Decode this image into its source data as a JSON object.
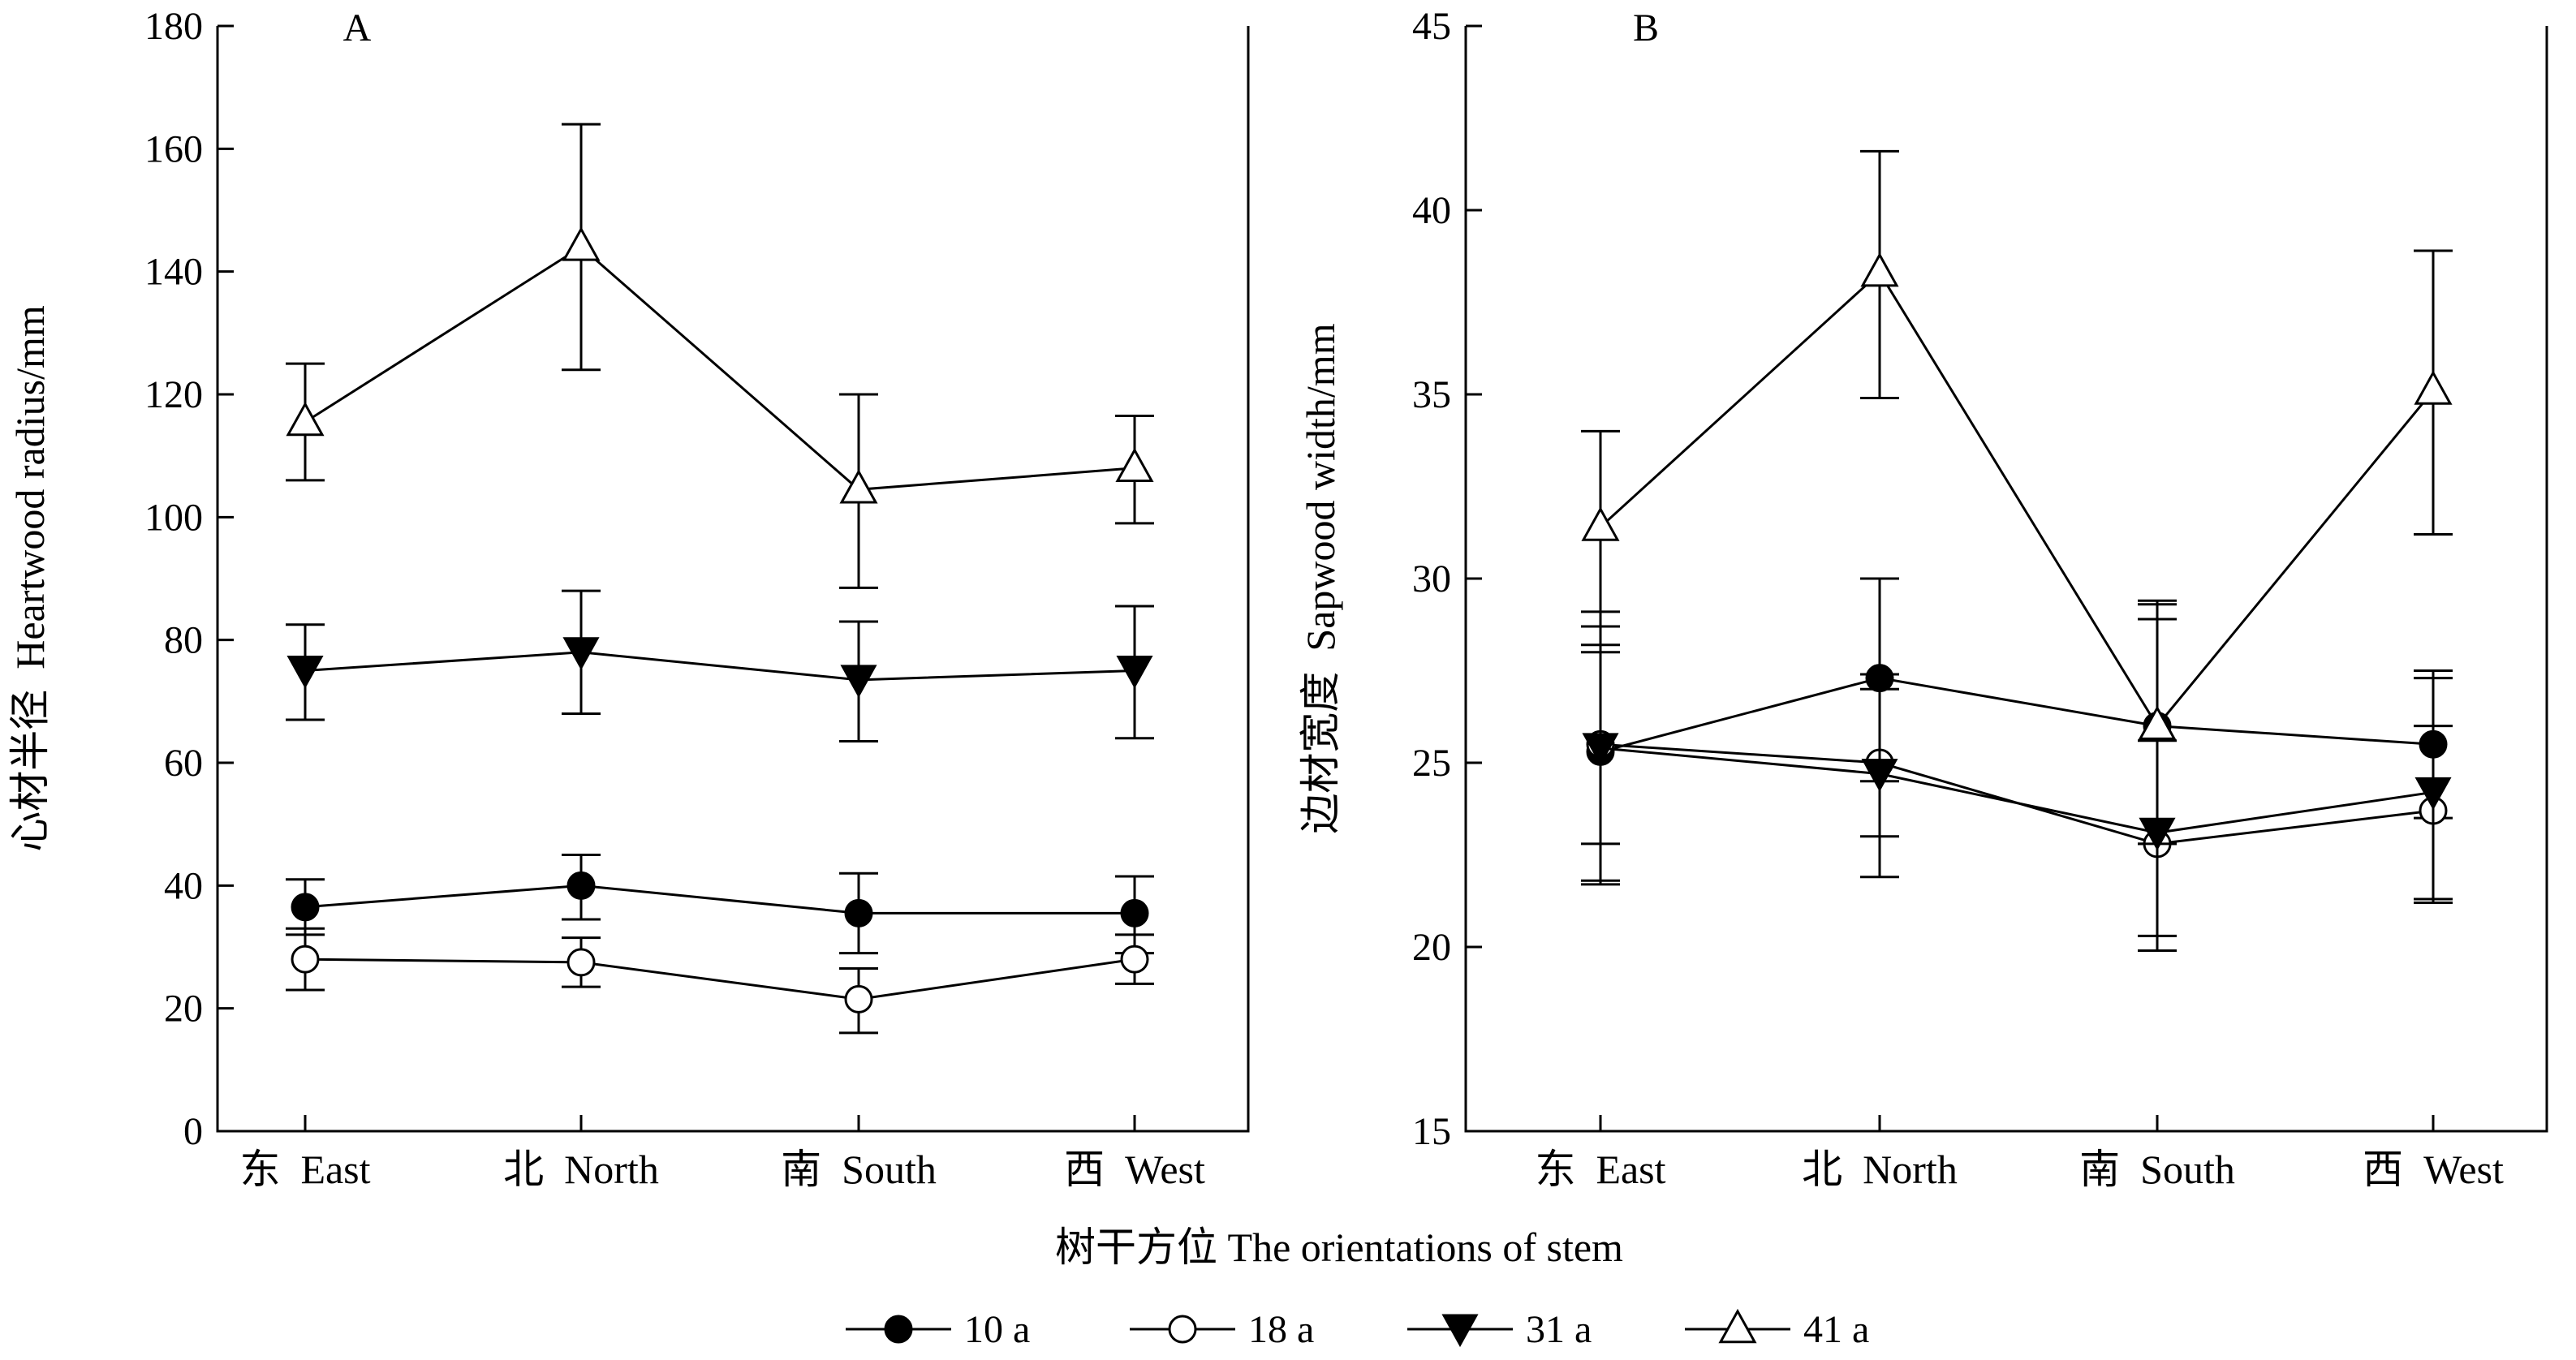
{
  "xlabel": "树干方位  The orientations of stem",
  "legend": [
    {
      "name": "10 a",
      "marker": "filled-circle"
    },
    {
      "name": "18 a",
      "marker": "open-circle"
    },
    {
      "name": "31 a",
      "marker": "filled-triangle-down"
    },
    {
      "name": "41 a",
      "marker": "open-triangle-up"
    }
  ],
  "chart_data": [
    {
      "type": "line",
      "panel": "A",
      "ylabel": "心材半径  Heartwood radius/mm",
      "categories": [
        "东  East",
        "北  North",
        "南  South",
        "西  West"
      ],
      "ylim": [
        0,
        180
      ],
      "yticks": [
        0,
        20,
        40,
        60,
        80,
        100,
        120,
        140,
        160,
        180
      ],
      "series": [
        {
          "name": "10 a",
          "marker": "filled-circle",
          "values": [
            36.5,
            40,
            35.5,
            35.5
          ],
          "err_high": [
            41,
            45,
            42,
            41.5
          ],
          "err_low": [
            32,
            34.5,
            29,
            29
          ]
        },
        {
          "name": "18 a",
          "marker": "open-circle",
          "values": [
            28,
            27.5,
            21.5,
            28
          ],
          "err_high": [
            33,
            31.5,
            26.5,
            32
          ],
          "err_low": [
            23,
            23.5,
            16,
            24
          ]
        },
        {
          "name": "31 a",
          "marker": "filled-triangle-down",
          "values": [
            75,
            78,
            73.5,
            75
          ],
          "err_high": [
            82.5,
            88,
            83,
            85.5
          ],
          "err_low": [
            67,
            68,
            63.5,
            64
          ]
        },
        {
          "name": "41 a",
          "marker": "open-triangle-up",
          "values": [
            115.5,
            144,
            104.5,
            108
          ],
          "err_high": [
            125,
            164,
            120,
            116.5
          ],
          "err_low": [
            106,
            124,
            88.5,
            99
          ]
        }
      ]
    },
    {
      "type": "line",
      "panel": "B",
      "ylabel": "边材宽度  Sapwood width/mm",
      "categories": [
        "东  East",
        "北  North",
        "南  South",
        "西  West"
      ],
      "ylim": [
        15,
        45
      ],
      "yticks": [
        15,
        20,
        25,
        30,
        35,
        40,
        45
      ],
      "series": [
        {
          "name": "10 a",
          "marker": "filled-circle",
          "values": [
            25.3,
            27.3,
            26.0,
            25.5
          ],
          "err_high": [
            28.7,
            30.0,
            29.3,
            27.5
          ],
          "err_low": [
            21.8,
            24.5,
            22.8,
            23.5
          ]
        },
        {
          "name": "18 a",
          "marker": "open-circle",
          "values": [
            25.5,
            25.0,
            22.8,
            23.7
          ],
          "err_high": [
            28.2,
            27.0,
            25.6,
            26.0
          ],
          "err_low": [
            22.8,
            23.0,
            19.9,
            21.3
          ]
        },
        {
          "name": "31 a",
          "marker": "filled-triangle-down",
          "values": [
            25.4,
            24.7,
            23.1,
            24.2
          ],
          "err_high": [
            29.1,
            27.4,
            28.9,
            27.3
          ],
          "err_low": [
            21.7,
            21.9,
            20.3,
            21.2
          ]
        },
        {
          "name": "41 a",
          "marker": "open-triangle-up",
          "values": [
            31.4,
            38.3,
            26.0,
            35.1
          ],
          "err_high": [
            34.0,
            41.6,
            29.4,
            38.9
          ],
          "err_low": [
            28.0,
            34.9,
            22.8,
            31.2
          ]
        }
      ]
    }
  ]
}
